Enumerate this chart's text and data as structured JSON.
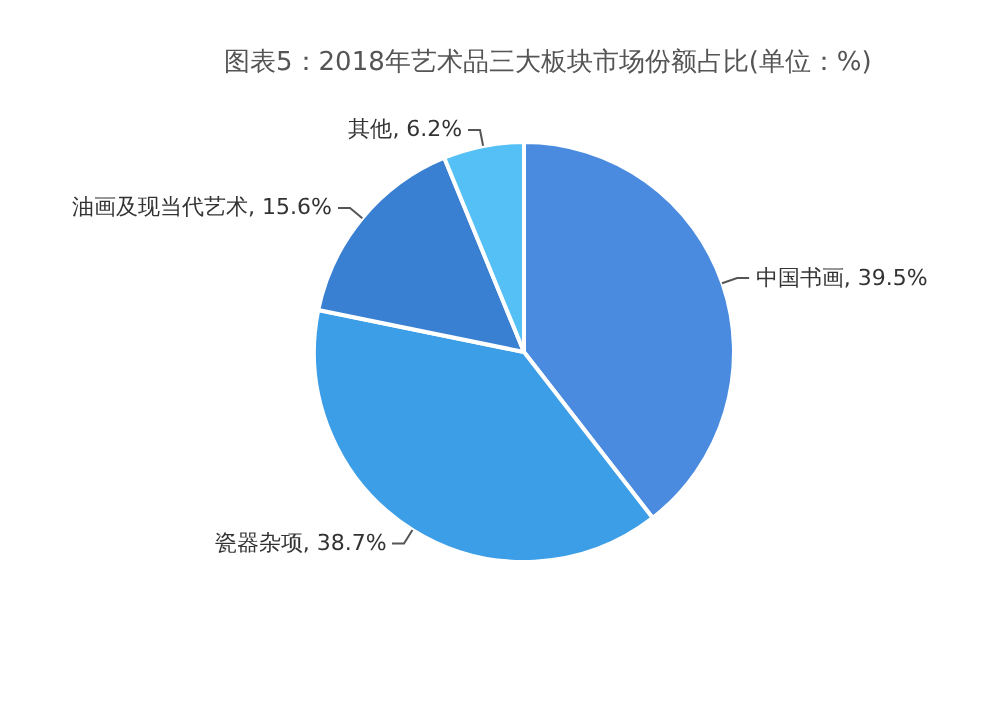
{
  "chart_data": {
    "type": "pie",
    "title": "图表5：2018年艺术品三大板块市场份额占比(单位：%)",
    "categories": [
      "中国书画",
      "瓷器杂项",
      "油画及现当代艺术",
      "其他"
    ],
    "values": [
      39.5,
      38.7,
      15.6,
      6.2
    ],
    "colors": [
      "#4a8be0",
      "#3d9ee8",
      "#3a80d2",
      "#55c0f5"
    ],
    "value_labels": [
      ", 39.5%",
      ", 38.7%",
      ", 15.6%",
      ", 6.2%"
    ],
    "legend": false
  }
}
